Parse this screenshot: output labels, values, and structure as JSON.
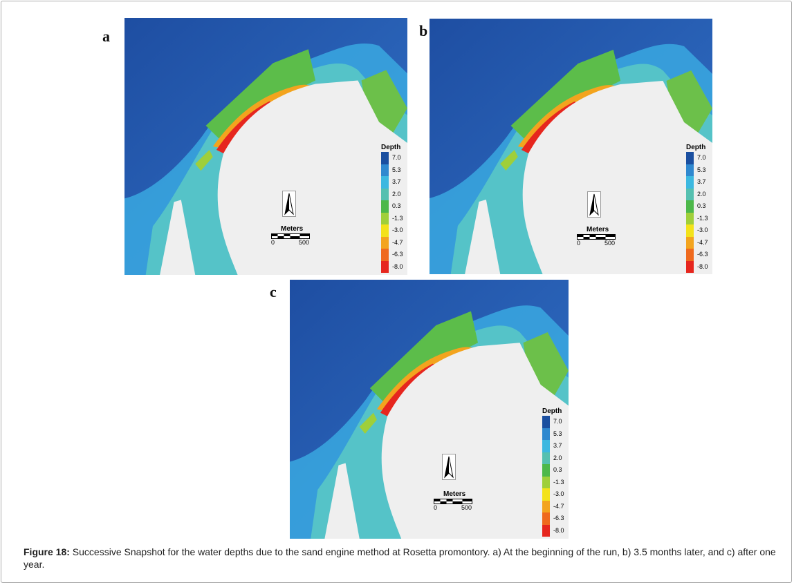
{
  "panels": [
    {
      "letter": "a"
    },
    {
      "letter": "b"
    },
    {
      "letter": "c"
    }
  ],
  "legend": {
    "title": "Depth",
    "entries": [
      {
        "label": "7.0",
        "color": "#1a4fa0"
      },
      {
        "label": "5.3",
        "color": "#2f88cf"
      },
      {
        "label": "3.7",
        "color": "#3cb8e0"
      },
      {
        "label": "2.0",
        "color": "#55c0b0"
      },
      {
        "label": "0.3",
        "color": "#4db84a"
      },
      {
        "label": "-1.3",
        "color": "#9fcf3a"
      },
      {
        "label": "-3.0",
        "color": "#f3e21a"
      },
      {
        "label": "-4.7",
        "color": "#f3a41e"
      },
      {
        "label": "-6.3",
        "color": "#ef6a1e"
      },
      {
        "label": "-8.0",
        "color": "#e6261e"
      }
    ]
  },
  "scale": {
    "title": "Meters",
    "start": "0",
    "end": "500"
  },
  "caption": {
    "label": "Figure 18:",
    "text": " Successive Snapshot for the water depths due to the sand engine method at Rosetta promontory. a) At the beginning of the run, b) 3.5 months later, and c) after one year."
  }
}
